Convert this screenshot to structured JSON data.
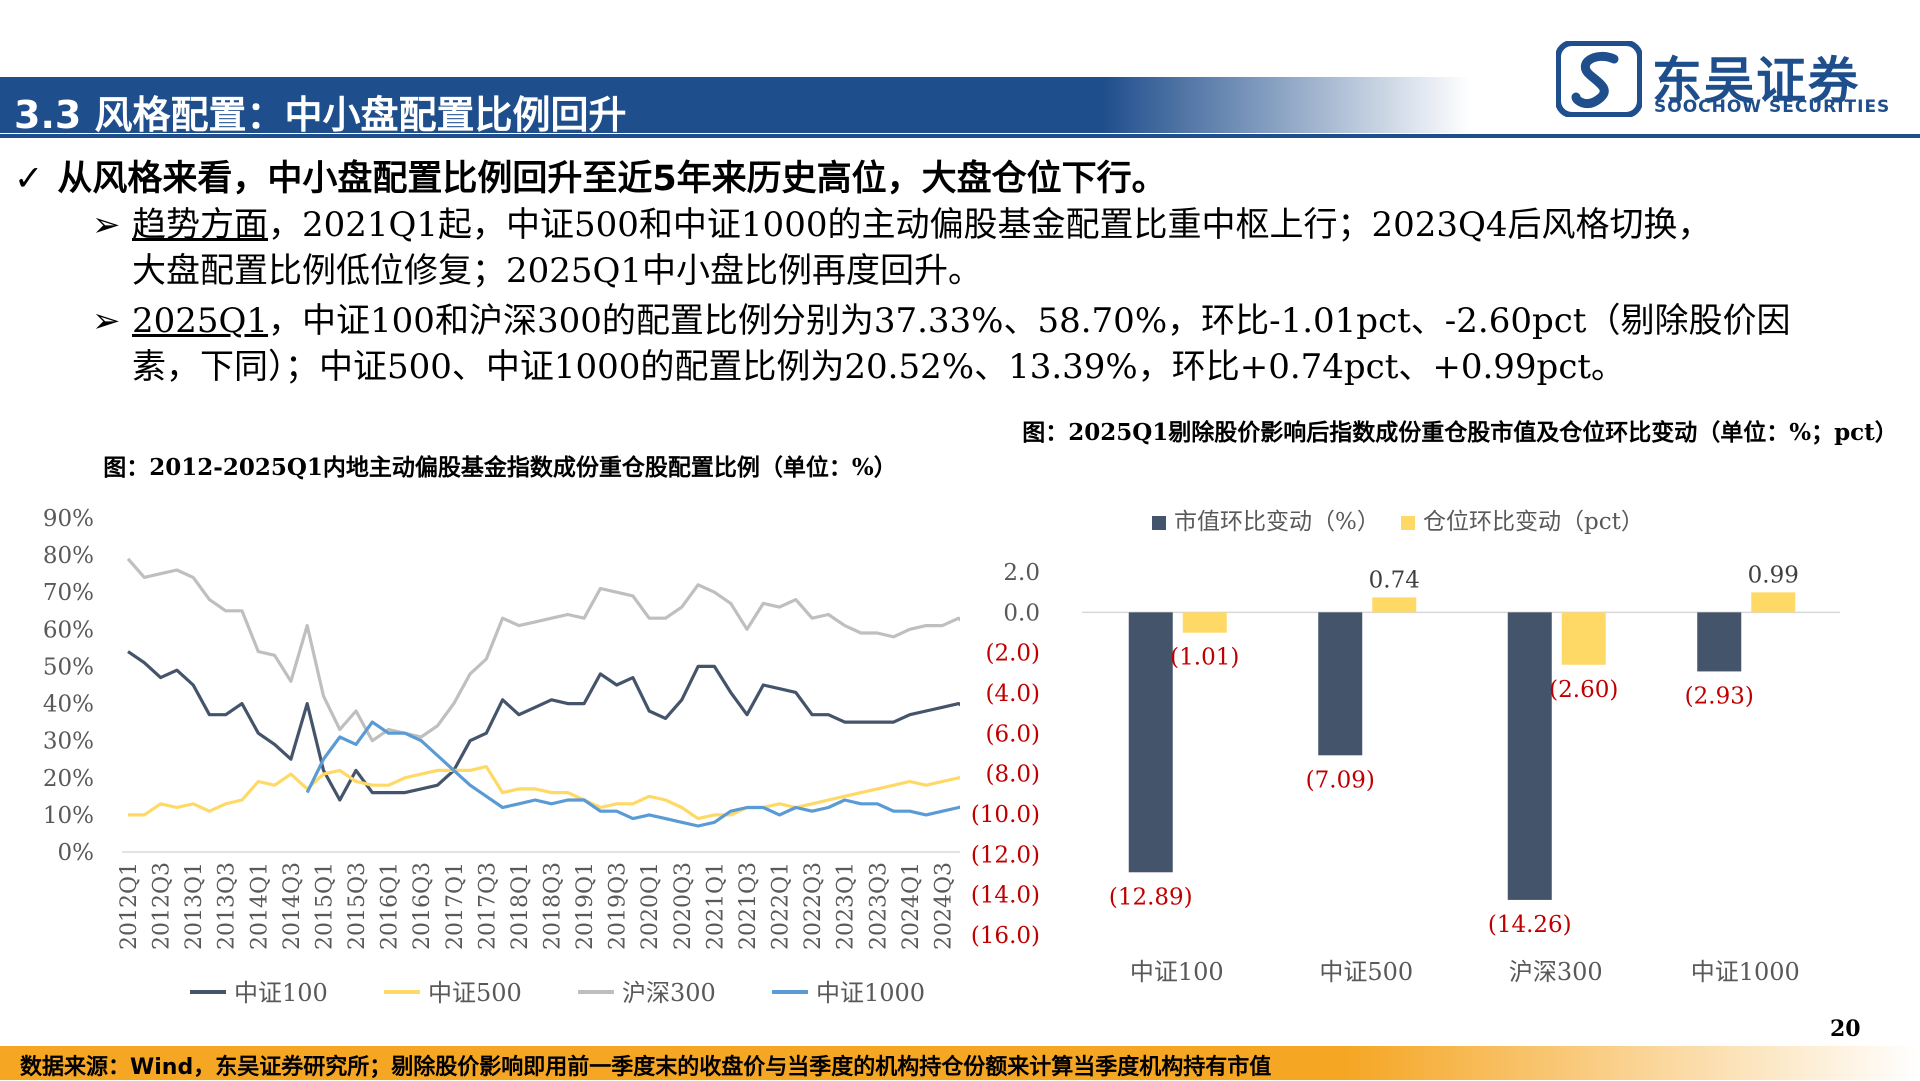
{
  "header": {
    "title": "3.3 风格配置：中小盘配置比例回升",
    "logo_cn": "东吴证券",
    "logo_en": "SOOCHOW SECURITIES",
    "logo_icon": "soochow-logo-icon"
  },
  "bullets": {
    "check_glyph": "✓",
    "arrow_glyph": "➢",
    "main": "从风格来看，中小盘配置比例回升至近5年来历史高位，大盘仓位下行。",
    "sub1": {
      "lead": "趋势方面",
      "line1_rest": "，2021Q1起，中证500和中证1000的主动偏股基金配置比重中枢上行；2023Q4后风格切换，",
      "line2": "大盘配置比例低位修复；2025Q1中小盘比例再度回升。"
    },
    "sub2": {
      "lead": "2025Q1",
      "line1_rest": "，中证100和沪深300的配置比例分别为37.33%、58.70%，环比-1.01pct、-2.60pct（剔除股价因",
      "line2": "素，下同）；中证500、中证1000的配置比例为20.52%、13.39%，环比+0.74pct、+0.99pct。"
    }
  },
  "page_number": "20",
  "footer": "数据来源：Wind，东吴证券研究所；剔除股价影响即用前一季度末的收盘价与当季度的机构持仓份额来计算当季度机构持有市值",
  "colors": {
    "brand_blue": "#1f4e8c",
    "footer_orange": "#f5a623",
    "navy": "#44546a",
    "gold": "#ffd966",
    "gray": "#bfbfbf",
    "light_blue": "#5b9bd5",
    "negative_red": "#c00000"
  },
  "chart_data": [
    {
      "type": "line",
      "title": "图：2012-2025Q1内地主动偏股基金指数成份重仓股配置比例（单位：%）",
      "y_ticks": [
        "90%",
        "80%",
        "70%",
        "60%",
        "50%",
        "40%",
        "30%",
        "20%",
        "10%",
        "0%"
      ],
      "ylim": [
        0,
        90
      ],
      "x": [
        "2012Q1",
        "2012Q2",
        "2012Q3",
        "2012Q4",
        "2013Q1",
        "2013Q2",
        "2013Q3",
        "2013Q4",
        "2014Q1",
        "2014Q2",
        "2014Q3",
        "2014Q4",
        "2015Q1",
        "2015Q2",
        "2015Q3",
        "2015Q4",
        "2016Q1",
        "2016Q2",
        "2016Q3",
        "2016Q4",
        "2017Q1",
        "2017Q2",
        "2017Q3",
        "2017Q4",
        "2018Q1",
        "2018Q2",
        "2018Q3",
        "2018Q4",
        "2019Q1",
        "2019Q2",
        "2019Q3",
        "2019Q4",
        "2020Q1",
        "2020Q2",
        "2020Q3",
        "2020Q4",
        "2021Q1",
        "2021Q2",
        "2021Q3",
        "2021Q4",
        "2022Q1",
        "2022Q2",
        "2022Q3",
        "2022Q4",
        "2023Q1",
        "2023Q2",
        "2023Q3",
        "2023Q4",
        "2024Q1",
        "2024Q2",
        "2024Q3",
        "2024Q4",
        "2025Q1"
      ],
      "x_tick_labels": [
        "2012Q1",
        "2012Q3",
        "2013Q1",
        "2013Q3",
        "2014Q1",
        "2014Q3",
        "2015Q1",
        "2015Q3",
        "2016Q1",
        "2016Q3",
        "2017Q1",
        "2017Q3",
        "2018Q1",
        "2018Q3",
        "2019Q1",
        "2019Q3",
        "2020Q1",
        "2020Q3",
        "2021Q1",
        "2021Q3",
        "2022Q1",
        "2022Q3",
        "2023Q1",
        "2023Q3",
        "2024Q1",
        "2024Q3",
        "2025Q1"
      ],
      "legend_position": "bottom",
      "series": [
        {
          "name": "中证100",
          "color": "#44546a",
          "values": [
            54,
            51,
            47,
            49,
            45,
            37,
            37,
            40,
            32,
            29,
            25,
            40,
            22,
            14,
            22,
            16,
            16,
            16,
            17,
            18,
            22,
            30,
            32,
            41,
            37,
            39,
            41,
            40,
            40,
            48,
            45,
            47,
            38,
            36,
            41,
            50,
            50,
            43,
            37,
            45,
            44,
            43,
            37,
            37,
            35,
            35,
            35,
            35,
            37,
            38,
            39,
            40,
            37.33
          ]
        },
        {
          "name": "中证500",
          "color": "#ffd966",
          "values": [
            10,
            10,
            13,
            12,
            13,
            11,
            13,
            14,
            19,
            18,
            21,
            17,
            21,
            22,
            19,
            18,
            18,
            20,
            21,
            22,
            22,
            22,
            23,
            16,
            17,
            17,
            16,
            16,
            14,
            12,
            13,
            13,
            15,
            14,
            12,
            9,
            10,
            10,
            12,
            12,
            13,
            12,
            13,
            14,
            15,
            16,
            17,
            18,
            19,
            18,
            19,
            20,
            20.52
          ]
        },
        {
          "name": "沪深300",
          "color": "#bfbfbf",
          "values": [
            79,
            74,
            75,
            76,
            74,
            68,
            65,
            65,
            54,
            53,
            46,
            61,
            42,
            33,
            38,
            30,
            33,
            32,
            31,
            34,
            40,
            48,
            52,
            63,
            61,
            62,
            63,
            64,
            63,
            71,
            70,
            69,
            63,
            63,
            66,
            72,
            70,
            67,
            60,
            67,
            66,
            68,
            63,
            64,
            61,
            59,
            59,
            58,
            60,
            61,
            61,
            63,
            58.7
          ]
        },
        {
          "name": "中证1000",
          "color": "#5b9bd5",
          "values": [
            null,
            null,
            null,
            null,
            null,
            null,
            null,
            null,
            null,
            null,
            null,
            16,
            25,
            31,
            29,
            35,
            32,
            32,
            30,
            26,
            22,
            18,
            15,
            12,
            13,
            14,
            13,
            14,
            14,
            11,
            11,
            9,
            10,
            9,
            8,
            7,
            8,
            11,
            12,
            12,
            10,
            12,
            11,
            12,
            14,
            13,
            13,
            11,
            11,
            10,
            11,
            12,
            13.39
          ]
        }
      ]
    },
    {
      "type": "bar",
      "title": "图：2025Q1剔除股价影响后指数成份重仓股市值及仓位环比变动（单位：%；pct）",
      "categories": [
        "中证100",
        "中证500",
        "沪深300",
        "中证1000"
      ],
      "y_ticks": [
        "2.0",
        "0.0",
        "(2.0)",
        "(4.0)",
        "(6.0)",
        "(8.0)",
        "(10.0)",
        "(12.0)",
        "(14.0)",
        "(16.0)"
      ],
      "ylim": [
        -16,
        2
      ],
      "legend_position": "top",
      "series": [
        {
          "name": "市值环比变动（%）",
          "color": "#44546a",
          "values": [
            -12.89,
            -7.09,
            -14.26,
            -2.93
          ],
          "labels": [
            "(12.89)",
            "(7.09)",
            "(14.26)",
            "(2.93)"
          ]
        },
        {
          "name": "仓位环比变动（pct）",
          "color": "#ffd966",
          "values": [
            -1.01,
            0.74,
            -2.6,
            0.99
          ],
          "labels": [
            "(1.01)",
            "0.74",
            "(2.60)",
            "0.99"
          ]
        }
      ]
    }
  ]
}
